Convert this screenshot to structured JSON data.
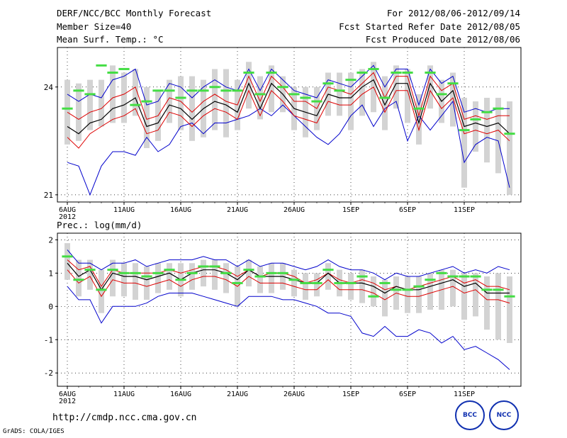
{
  "header": {
    "title": "DERF/NCC/BCC Monthly Forecast",
    "member_size": "Member Size=40",
    "variable": "Mean Surf. Temp.: °C",
    "period": "For 2012/08/06-2012/09/14",
    "started": "Fcst Started Refer Date 2012/08/05",
    "produced": "Fcst Produced Date 2012/08/06"
  },
  "footer": {
    "url": "http://cmdp.ncc.cma.gov.cn",
    "credit": "GrADS: COLA/IGES",
    "logo_bcc": "BCC",
    "logo_ncc": "NCC"
  },
  "colors": {
    "box": "#d3d3d3",
    "median": "#44dd44",
    "max": "#0000cc",
    "ens": "#dd0000",
    "mean": "#000000"
  },
  "chart_data": [
    {
      "type": "line",
      "title": "Mean Surf. Temp.: °C",
      "ylim": [
        20.8,
        25.1
      ],
      "yticks": [
        21,
        24
      ],
      "xticks": [
        "6AUG",
        "11AUG",
        "16AUG",
        "21AUG",
        "26AUG",
        "1SEP",
        "6SEP",
        "11SEP"
      ],
      "year_label": "2012",
      "days": 40,
      "series": [
        {
          "name": "max",
          "values": [
            23.8,
            23.6,
            23.8,
            23.7,
            24.2,
            24.3,
            24.5,
            23.5,
            23.6,
            24.1,
            24.0,
            23.7,
            24.0,
            24.2,
            24.0,
            23.9,
            24.5,
            23.9,
            24.5,
            24.2,
            23.9,
            23.8,
            23.7,
            24.2,
            24.1,
            24.0,
            24.3,
            24.6,
            24.0,
            24.5,
            24.5,
            23.5,
            24.5,
            24.1,
            24.3,
            23.3,
            23.4,
            23.3,
            23.4,
            23.4
          ]
        },
        {
          "name": "upper",
          "values": [
            23.3,
            23.1,
            23.3,
            23.4,
            23.7,
            23.8,
            24.0,
            23.1,
            23.2,
            23.7,
            23.6,
            23.3,
            23.6,
            23.8,
            23.6,
            23.5,
            24.3,
            23.6,
            24.3,
            24.0,
            23.6,
            23.6,
            23.4,
            24.0,
            23.9,
            23.8,
            24.1,
            24.4,
            23.7,
            24.3,
            24.3,
            23.2,
            24.3,
            23.9,
            24.1,
            23.1,
            23.2,
            23.1,
            23.2,
            23.2
          ]
        },
        {
          "name": "mean",
          "values": [
            22.9,
            22.7,
            23.0,
            23.1,
            23.4,
            23.5,
            23.7,
            22.9,
            23.0,
            23.5,
            23.4,
            23.1,
            23.4,
            23.6,
            23.5,
            23.3,
            24.1,
            23.4,
            24.1,
            23.8,
            23.4,
            23.3,
            23.2,
            23.8,
            23.7,
            23.7,
            24.0,
            24.2,
            23.5,
            24.1,
            24.1,
            23.0,
            24.1,
            23.6,
            23.9,
            22.9,
            23.0,
            22.9,
            23.0,
            22.7
          ]
        },
        {
          "name": "lower",
          "values": [
            22.6,
            22.3,
            22.7,
            22.9,
            23.1,
            23.2,
            23.4,
            22.7,
            22.8,
            23.3,
            23.2,
            22.9,
            23.2,
            23.4,
            23.3,
            23.1,
            23.9,
            23.2,
            23.9,
            23.6,
            23.2,
            23.1,
            23.0,
            23.6,
            23.5,
            23.5,
            23.8,
            24.0,
            23.3,
            23.9,
            23.9,
            22.8,
            23.9,
            23.4,
            23.7,
            22.7,
            22.8,
            22.7,
            22.8,
            22.5
          ]
        },
        {
          "name": "min",
          "values": [
            21.9,
            21.8,
            21.0,
            21.8,
            22.2,
            22.2,
            22.1,
            22.6,
            22.2,
            22.4,
            22.9,
            23.0,
            22.7,
            23.0,
            23.0,
            23.1,
            23.2,
            23.4,
            23.2,
            23.5,
            23.2,
            22.9,
            22.6,
            22.4,
            22.7,
            23.2,
            23.5,
            22.9,
            23.4,
            23.6,
            22.5,
            23.2,
            22.8,
            23.2,
            23.6,
            21.9,
            22.4,
            22.6,
            22.5,
            21.2
          ]
        },
        {
          "name": "box_top",
          "values": [
            24.2,
            24.1,
            24.2,
            24.2,
            24.6,
            24.4,
            24.5,
            24.0,
            23.9,
            24.2,
            24.3,
            24.3,
            24.2,
            24.5,
            24.5,
            24.2,
            24.7,
            24.3,
            24.6,
            24.3,
            24.0,
            24.0,
            24.0,
            24.4,
            24.4,
            24.4,
            24.5,
            24.7,
            24.3,
            24.6,
            24.5,
            23.8,
            24.6,
            24.2,
            24.4,
            23.7,
            23.6,
            23.7,
            23.7,
            23.6
          ]
        },
        {
          "name": "box_bottom",
          "values": [
            22.4,
            22.5,
            22.8,
            22.9,
            23.0,
            23.0,
            23.2,
            22.3,
            22.5,
            23.0,
            22.8,
            22.5,
            22.6,
            22.8,
            22.6,
            22.8,
            23.4,
            23.1,
            23.3,
            23.3,
            22.8,
            22.6,
            22.8,
            23.2,
            23.2,
            22.8,
            23.2,
            23.3,
            22.8,
            23.4,
            23.0,
            22.4,
            23.4,
            23.0,
            22.9,
            21.2,
            22.2,
            21.9,
            21.6,
            21.0
          ]
        },
        {
          "name": "median",
          "values": [
            23.4,
            23.9,
            23.8,
            24.6,
            24.4,
            24.5,
            23.5,
            23.6,
            23.9,
            23.9,
            23.7,
            23.9,
            23.9,
            24.0,
            23.9,
            23.9,
            24.4,
            23.8,
            24.4,
            24.0,
            23.8,
            23.7,
            23.6,
            24.1,
            23.9,
            24.2,
            24.4,
            24.5,
            23.7,
            24.4,
            24.4,
            23.4,
            24.4,
            23.8,
            24.1,
            22.8,
            23.1,
            23.3,
            23.4,
            22.7
          ]
        }
      ]
    },
    {
      "type": "line",
      "title": "Prec.: log(mm/d)",
      "ylim": [
        -2.4,
        2.2
      ],
      "yticks": [
        -2,
        -1,
        0,
        1,
        2
      ],
      "xticks": [
        "6AUG",
        "11AUG",
        "16AUG",
        "21AUG",
        "26AUG",
        "1SEP",
        "6SEP",
        "11SEP"
      ],
      "year_label": "2012",
      "days": 40,
      "series": [
        {
          "name": "max",
          "values": [
            1.7,
            1.3,
            1.3,
            1.1,
            1.3,
            1.3,
            1.4,
            1.2,
            1.3,
            1.4,
            1.4,
            1.4,
            1.5,
            1.4,
            1.4,
            1.2,
            1.4,
            1.2,
            1.3,
            1.3,
            1.2,
            1.1,
            1.2,
            1.4,
            1.2,
            1.1,
            1.1,
            1.0,
            0.8,
            1.0,
            0.9,
            0.9,
            1.0,
            1.1,
            1.2,
            1.0,
            1.1,
            1.0,
            1.2,
            1.1
          ]
        },
        {
          "name": "upper",
          "values": [
            1.4,
            1.1,
            1.2,
            0.6,
            1.1,
            1.0,
            1.0,
            1.0,
            1.0,
            1.1,
            1.0,
            1.1,
            1.2,
            1.2,
            1.1,
            0.9,
            1.1,
            0.9,
            1.0,
            1.0,
            0.9,
            0.7,
            0.8,
            1.0,
            0.8,
            0.7,
            0.8,
            0.7,
            0.5,
            0.6,
            0.5,
            0.6,
            0.7,
            0.8,
            0.9,
            0.7,
            0.8,
            0.6,
            0.6,
            0.5
          ]
        },
        {
          "name": "mean",
          "values": [
            1.3,
            0.9,
            1.1,
            0.5,
            1.0,
            0.9,
            0.9,
            0.8,
            0.9,
            1.0,
            0.8,
            1.0,
            1.1,
            1.1,
            1.0,
            0.8,
            1.1,
            0.9,
            0.9,
            0.9,
            0.8,
            0.7,
            0.7,
            1.0,
            0.7,
            0.7,
            0.7,
            0.6,
            0.4,
            0.6,
            0.5,
            0.5,
            0.6,
            0.7,
            0.8,
            0.6,
            0.7,
            0.4,
            0.4,
            0.4
          ]
        },
        {
          "name": "lower",
          "values": [
            1.1,
            0.7,
            0.9,
            0.3,
            0.8,
            0.7,
            0.7,
            0.6,
            0.7,
            0.8,
            0.6,
            0.8,
            0.9,
            0.9,
            0.8,
            0.6,
            0.9,
            0.7,
            0.7,
            0.7,
            0.6,
            0.5,
            0.5,
            0.8,
            0.5,
            0.5,
            0.5,
            0.4,
            0.2,
            0.4,
            0.3,
            0.3,
            0.4,
            0.5,
            0.6,
            0.4,
            0.5,
            0.2,
            0.2,
            0.1
          ]
        },
        {
          "name": "min",
          "values": [
            0.6,
            0.2,
            0.2,
            -0.5,
            0.0,
            0.0,
            0.0,
            0.1,
            0.3,
            0.4,
            0.4,
            0.4,
            0.3,
            0.2,
            0.1,
            0.0,
            0.3,
            0.3,
            0.3,
            0.2,
            0.2,
            0.1,
            0.0,
            -0.2,
            -0.2,
            -0.3,
            -0.8,
            -0.9,
            -0.6,
            -0.9,
            -0.9,
            -0.7,
            -0.8,
            -1.1,
            -0.9,
            -1.3,
            -1.2,
            -1.4,
            -1.6,
            -1.9
          ]
        },
        {
          "name": "box_top",
          "values": [
            1.9,
            1.4,
            1.4,
            1.1,
            1.4,
            1.3,
            1.3,
            1.2,
            1.3,
            1.3,
            1.3,
            1.3,
            1.4,
            1.4,
            1.3,
            1.2,
            1.4,
            1.2,
            1.3,
            1.3,
            1.1,
            1.0,
            1.0,
            1.3,
            1.1,
            1.0,
            1.1,
            0.9,
            0.8,
            0.9,
            0.9,
            0.9,
            1.0,
            1.1,
            1.1,
            1.0,
            1.0,
            0.9,
            1.0,
            0.9
          ]
        },
        {
          "name": "box_bottom",
          "values": [
            0.8,
            0.3,
            0.5,
            -0.2,
            0.3,
            0.3,
            0.2,
            0.2,
            0.4,
            0.5,
            0.3,
            0.5,
            0.6,
            0.5,
            0.4,
            0.0,
            0.6,
            0.4,
            0.4,
            0.5,
            0.3,
            0.2,
            0.3,
            0.5,
            0.3,
            0.2,
            0.1,
            0.0,
            -0.3,
            -0.1,
            -0.2,
            -0.2,
            -0.1,
            -0.1,
            0.0,
            -0.4,
            -0.3,
            -0.7,
            -1.0,
            -1.1
          ]
        },
        {
          "name": "median",
          "values": [
            1.5,
            0.8,
            1.1,
            0.5,
            1.1,
            1.0,
            1.0,
            0.9,
            1.0,
            1.1,
            0.8,
            1.0,
            1.2,
            1.2,
            1.0,
            0.7,
            1.1,
            0.9,
            1.0,
            1.0,
            0.8,
            0.7,
            0.7,
            1.1,
            0.7,
            0.7,
            0.9,
            0.3,
            0.7,
            0.5,
            0.5,
            0.6,
            0.8,
            1.0,
            0.9,
            0.9,
            0.9,
            0.5,
            0.5,
            0.3
          ]
        }
      ]
    }
  ]
}
